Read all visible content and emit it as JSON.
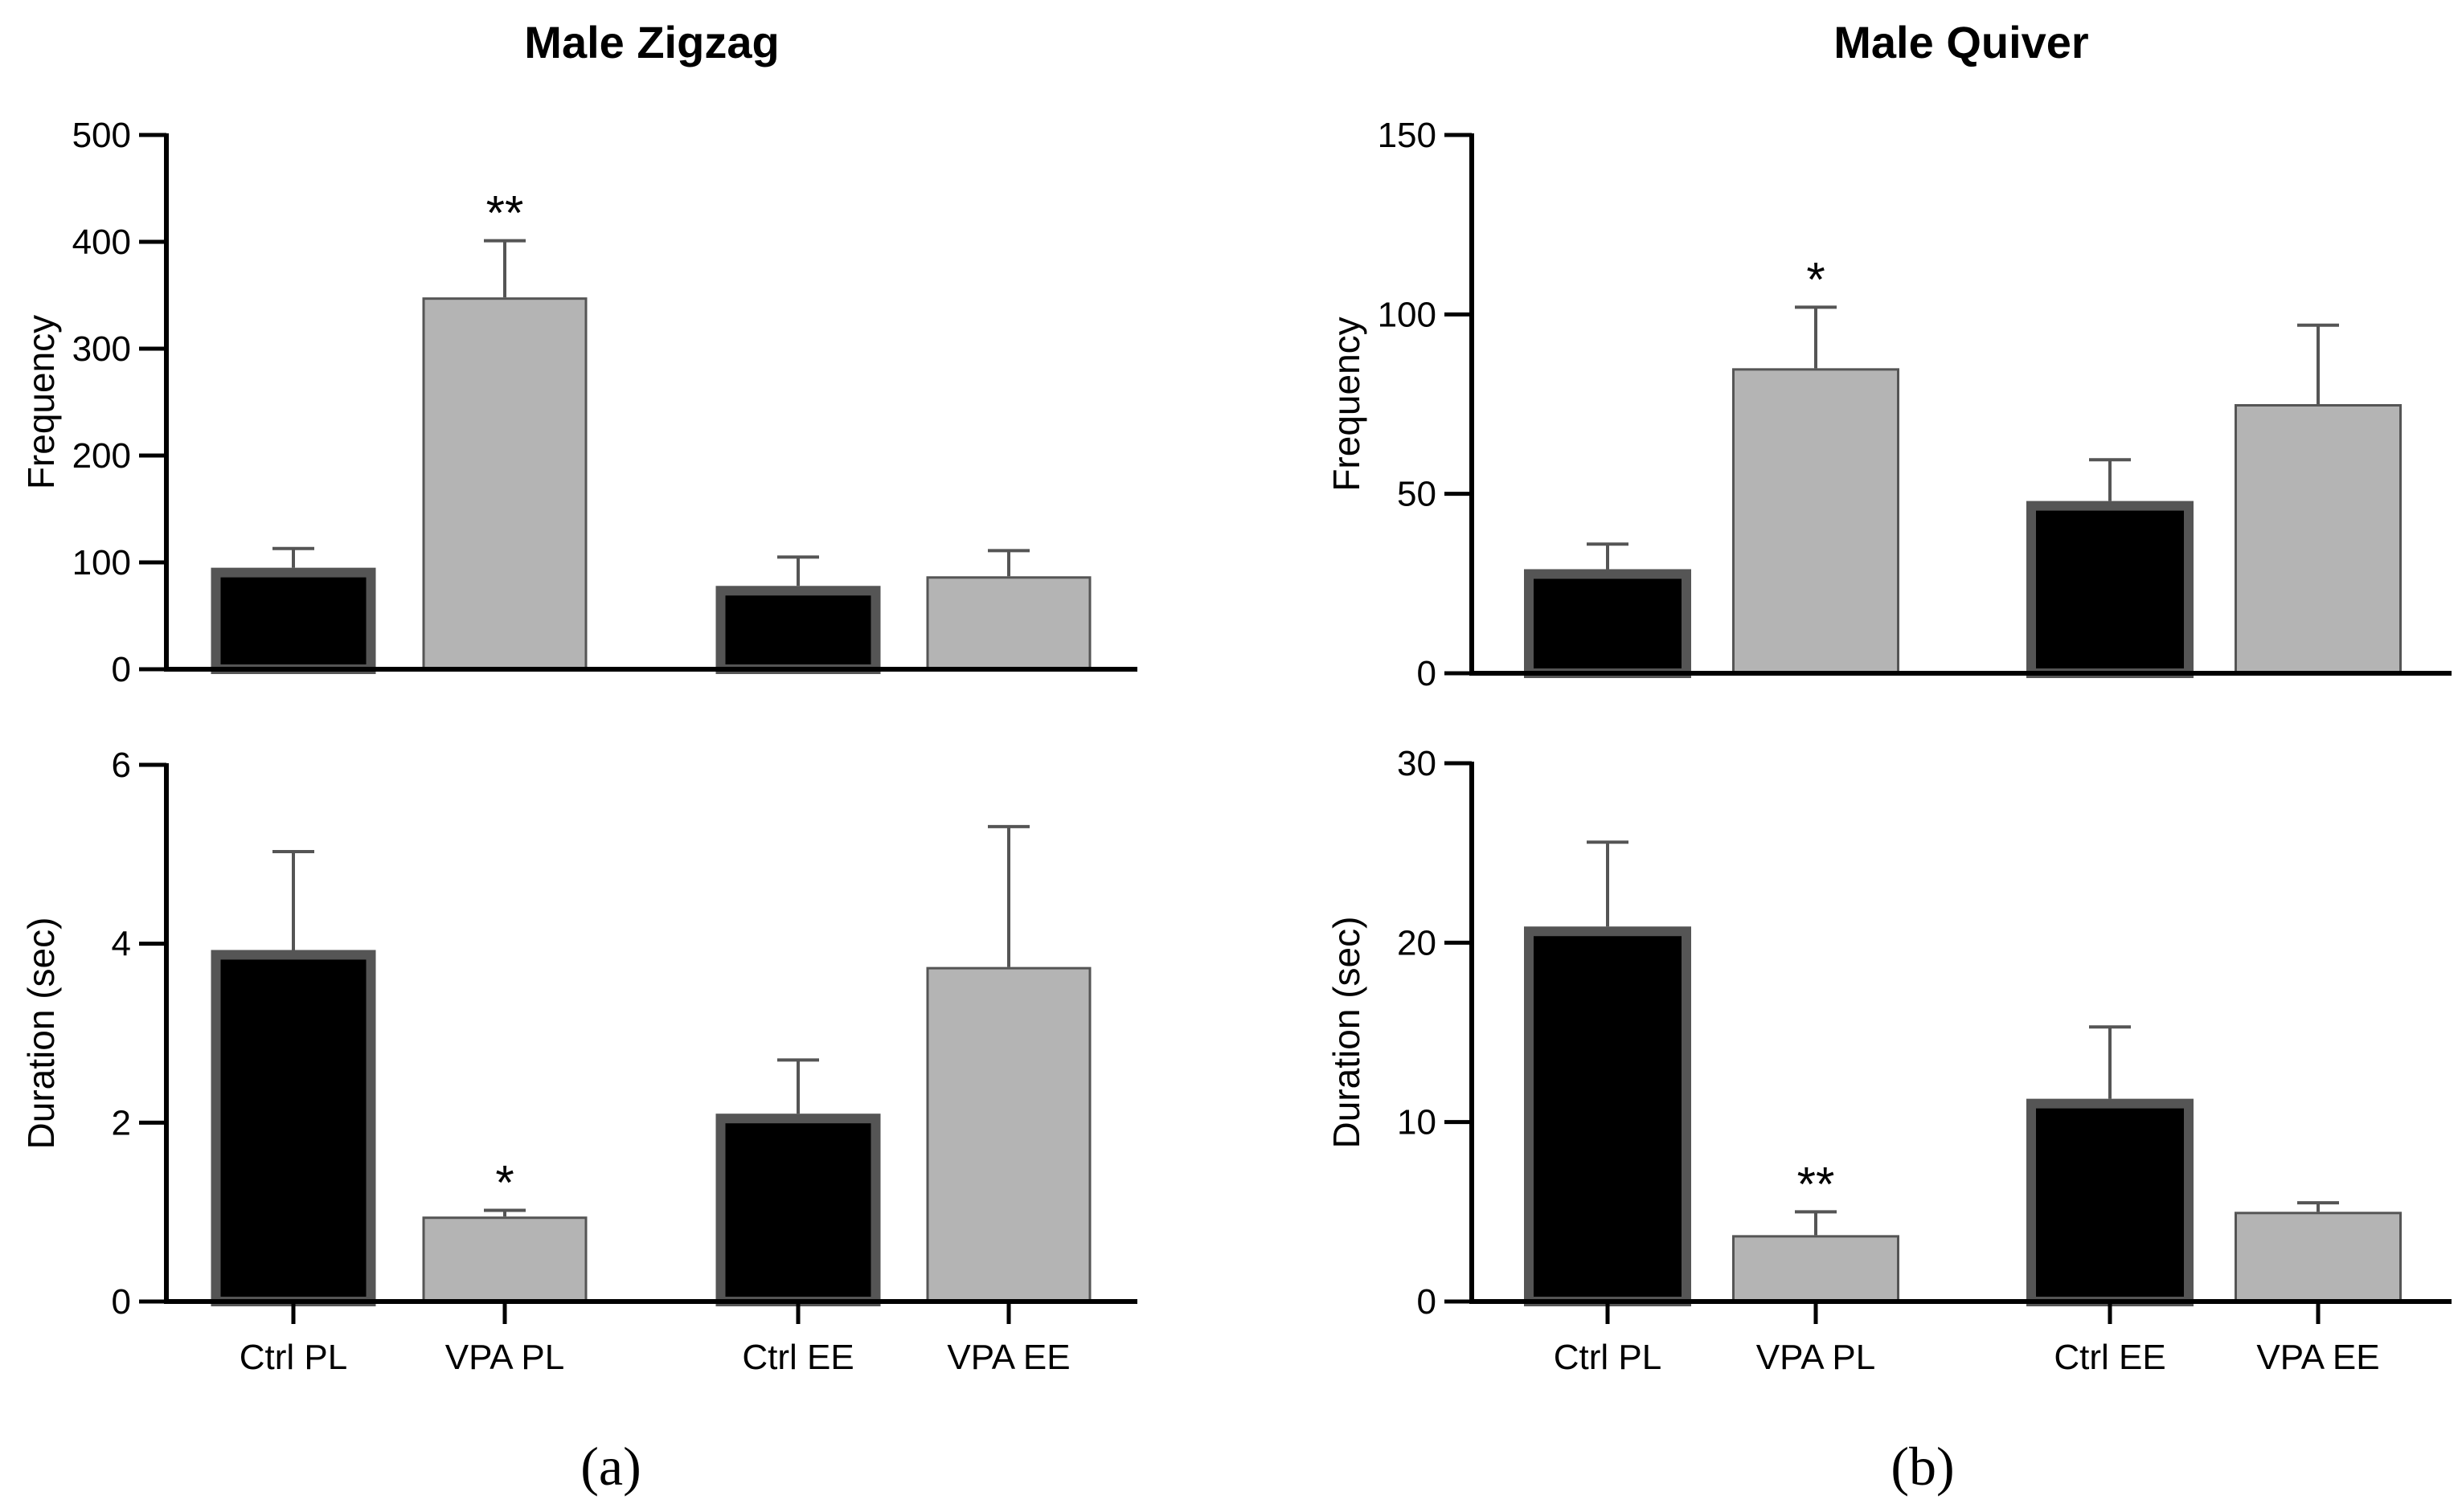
{
  "figure": {
    "panel_labels": [
      "(a)",
      "(b)"
    ],
    "categories": [
      "Ctrl PL",
      "VPA PL",
      "Ctrl EE",
      "VPA EE"
    ]
  },
  "colors": {
    "ctrl_fill": "#000000",
    "ctrl_stroke": "#555555",
    "vpa_fill": "#b4b4b4",
    "vpa_stroke": "#555555",
    "error_bar": "#555555",
    "axis": "#000000"
  },
  "chart_data": [
    {
      "type": "bar",
      "title": "Male Zigzag",
      "ylabel": "Frequency",
      "xlabel": "",
      "categories": [
        "Ctrl PL",
        "VPA PL",
        "Ctrl EE",
        "VPA EE"
      ],
      "values": [
        95,
        348,
        78,
        87
      ],
      "errors": [
        18,
        53,
        27,
        24
      ],
      "significance": [
        "",
        "**",
        "",
        ""
      ],
      "ylim": [
        0,
        500
      ],
      "yticks": [
        0,
        100,
        200,
        300,
        400,
        500
      ],
      "show_category_labels": false
    },
    {
      "type": "bar",
      "title": "",
      "ylabel": "Duration (sec)",
      "xlabel": "",
      "categories": [
        "Ctrl PL",
        "VPA PL",
        "Ctrl EE",
        "VPA EE"
      ],
      "values": [
        3.93,
        0.95,
        2.1,
        3.74
      ],
      "errors": [
        1.1,
        0.07,
        0.6,
        1.57
      ],
      "significance": [
        "",
        "*",
        "",
        ""
      ],
      "ylim": [
        0,
        6
      ],
      "yticks": [
        0,
        2,
        4,
        6
      ],
      "show_category_labels": true
    },
    {
      "type": "bar",
      "title": "Male Quiver",
      "ylabel": "Frequency",
      "xlabel": "",
      "categories": [
        "Ctrl PL",
        "VPA PL",
        "Ctrl EE",
        "VPA EE"
      ],
      "values": [
        29,
        85,
        48,
        75
      ],
      "errors": [
        7,
        17,
        11.5,
        22
      ],
      "significance": [
        "",
        "*",
        "",
        ""
      ],
      "ylim": [
        0,
        150
      ],
      "yticks": [
        0,
        50,
        100,
        150
      ],
      "show_category_labels": false
    },
    {
      "type": "bar",
      "title": "",
      "ylabel": "Duration (sec)",
      "xlabel": "",
      "categories": [
        "Ctrl PL",
        "VPA PL",
        "Ctrl EE",
        "VPA EE"
      ],
      "values": [
        20.9,
        3.7,
        11.3,
        5.0
      ],
      "errors": [
        4.7,
        1.3,
        4.0,
        0.5
      ],
      "significance": [
        "",
        "**",
        "",
        ""
      ],
      "ylim": [
        0,
        30
      ],
      "yticks": [
        0,
        10,
        20,
        30
      ],
      "show_category_labels": true
    }
  ]
}
